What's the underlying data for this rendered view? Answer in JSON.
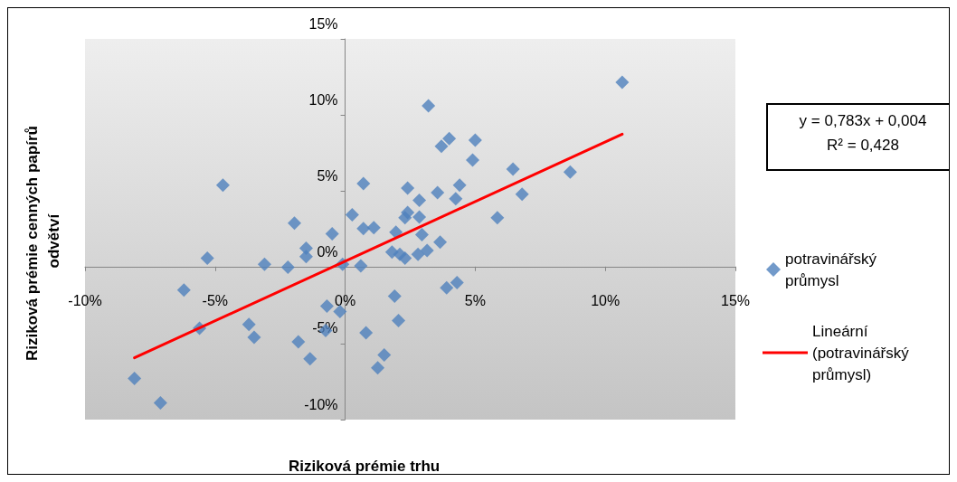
{
  "chart_data": {
    "type": "scatter",
    "xlabel": "Riziková prémie trhu",
    "ylabel": "Riziková prémie cenných papírů odvětví",
    "annotations": [
      "y = 0,783x + 0,004",
      "R² = 0,428"
    ],
    "xlim": [
      -10,
      15
    ],
    "ylim": [
      -10,
      15
    ],
    "xticks": [
      {
        "value": -10,
        "label": "-10%"
      },
      {
        "value": -5,
        "label": "-5%"
      },
      {
        "value": 0,
        "label": "0%"
      },
      {
        "value": 5,
        "label": "5%"
      },
      {
        "value": 10,
        "label": "10%"
      },
      {
        "value": 15,
        "label": "15%"
      }
    ],
    "yticks": [
      {
        "value": -10,
        "label": "-10%"
      },
      {
        "value": -5,
        "label": "-5%"
      },
      {
        "value": 0,
        "label": "0%"
      },
      {
        "value": 5,
        "label": "5%"
      },
      {
        "value": 10,
        "label": "10%"
      },
      {
        "value": 15,
        "label": "15%"
      }
    ],
    "grid": false,
    "legend": "right",
    "marker": "diamond",
    "series": [
      {
        "name": "potravinářský průmysl",
        "type": "scatter",
        "color": "#4f81bd",
        "x": [
          -8.1,
          -7.1,
          -6.2,
          -5.6,
          -5.3,
          -4.7,
          -3.7,
          -3.5,
          -3.1,
          -2.2,
          -1.95,
          -1.5,
          -1.5,
          -1.35,
          -1.8,
          -0.75,
          -0.7,
          -0.5,
          -0.2,
          -0.1,
          0.27,
          0.6,
          0.7,
          0.7,
          1.1,
          0.8,
          1.5,
          1.25,
          1.9,
          2.05,
          1.8,
          1.95,
          2.1,
          2.3,
          2.3,
          2.4,
          2.4,
          2.85,
          2.85,
          2.95,
          2.8,
          3.15,
          3.2,
          3.55,
          3.65,
          3.7,
          4.0,
          3.9,
          4.3,
          4.25,
          4.4,
          4.9,
          5.0,
          5.85,
          6.45,
          6.8,
          8.65,
          10.65
        ],
        "values": [
          -7.3,
          -8.9,
          -1.5,
          -4.0,
          0.6,
          5.4,
          -3.75,
          -4.6,
          0.2,
          0.0,
          2.9,
          1.25,
          0.7,
          -6.0,
          -4.9,
          -4.15,
          -2.55,
          2.2,
          -2.9,
          0.2,
          3.45,
          0.1,
          5.5,
          2.55,
          2.6,
          -4.3,
          -5.75,
          -6.6,
          -1.9,
          -3.5,
          1.0,
          2.3,
          0.85,
          0.6,
          3.25,
          3.6,
          5.2,
          4.4,
          3.3,
          2.15,
          0.85,
          1.1,
          10.6,
          4.9,
          1.65,
          7.95,
          8.45,
          -1.35,
          -1.0,
          4.5,
          5.4,
          7.05,
          8.35,
          3.25,
          6.45,
          4.8,
          6.25,
          12.15
        ]
      },
      {
        "name": "Lineární (potravinářský průmysl)",
        "type": "line",
        "color": "#ff0000",
        "marker": "none",
        "line_style": "solid",
        "x": [
          -8.1,
          10.65
        ],
        "values": [
          -5.94,
          8.74
        ]
      }
    ]
  }
}
